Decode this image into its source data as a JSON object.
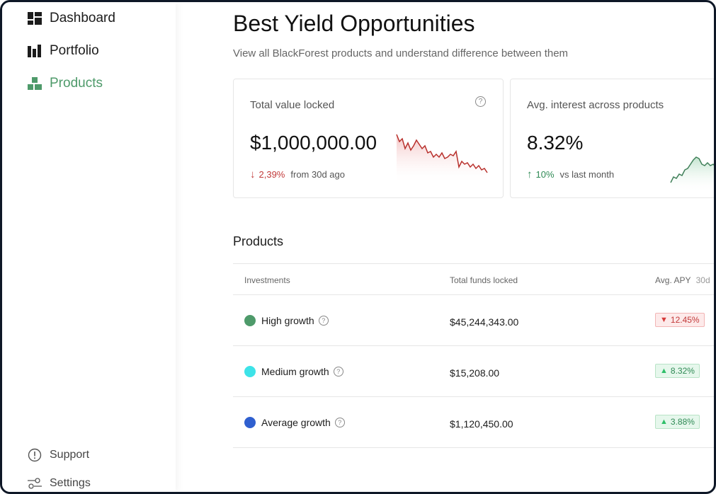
{
  "sidebar": {
    "items": [
      {
        "label": "Dashboard",
        "icon": "dashboard-icon"
      },
      {
        "label": "Portfolio",
        "icon": "bar-chart-icon"
      },
      {
        "label": "Products",
        "icon": "products-icon",
        "active": true
      }
    ],
    "bottom": [
      {
        "label": "Support",
        "icon": "alert-circle-icon"
      },
      {
        "label": "Settings",
        "icon": "sliders-icon"
      }
    ]
  },
  "header": {
    "title": "Best Yield Opportunities",
    "subtitle": "View all BlackForest products and understand difference between them"
  },
  "cards": [
    {
      "label": "Total value locked",
      "value": "$1,000,000.00",
      "delta": "2,39%",
      "delta_direction": "down",
      "note": "from 30d ago",
      "help": "?"
    },
    {
      "label": "Avg. interest across products",
      "value": "8.32%",
      "delta": "10%",
      "delta_direction": "up",
      "note": "vs last month"
    }
  ],
  "products": {
    "title": "Products",
    "columns": {
      "investments": "Investments",
      "funds": "Total funds locked",
      "apy": "Avg. APY",
      "apy_period": "30d"
    },
    "rows": [
      {
        "name": "High growth",
        "color": "#4e9a6a",
        "funds": "$45,244,343.00",
        "apy": "12.45%",
        "direction": "down"
      },
      {
        "name": "Medium growth",
        "color": "#3de3e8",
        "funds": "$15,208.00",
        "apy": "8.32%",
        "direction": "up"
      },
      {
        "name": "Average growth",
        "color": "#2f5fcf",
        "funds": "$1,120,450.00",
        "apy": "3.88%",
        "direction": "up"
      }
    ]
  },
  "colors": {
    "accent": "#4e9a6a",
    "negative": "#c23a3a",
    "positive": "#2f8a55"
  },
  "symbols": {
    "arrow_down": "↓",
    "arrow_up": "↑",
    "tri_down": "▼",
    "tri_up": "▲",
    "help": "?"
  }
}
